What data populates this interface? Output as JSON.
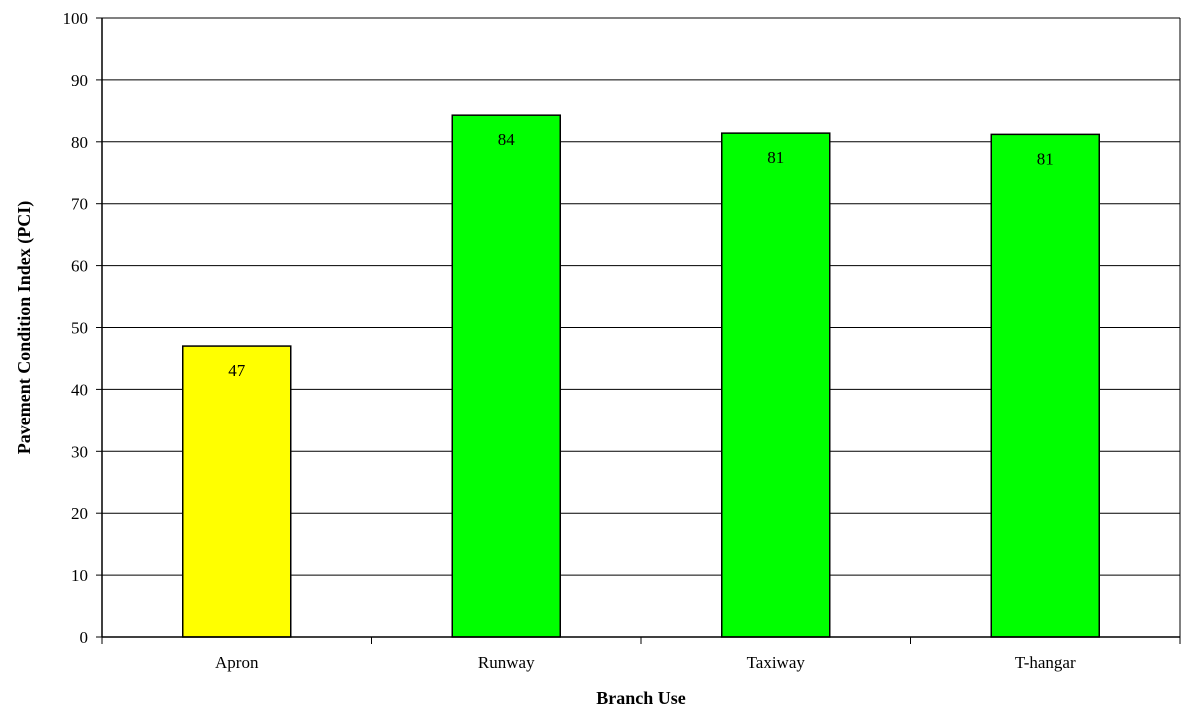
{
  "chart_data": {
    "type": "bar",
    "title": "",
    "xlabel": "Branch Use",
    "ylabel": "Pavement Condition Index (PCI)",
    "categories": [
      "Apron",
      "Runway",
      "Taxiway",
      "T-hangar"
    ],
    "values": [
      47,
      84.3,
      81.4,
      81.2
    ],
    "data_labels": [
      "47",
      "84",
      "81",
      "81"
    ],
    "bar_colors": [
      "#ffff00",
      "#00ff00",
      "#00ff00",
      "#00ff00"
    ],
    "ylim": [
      0,
      100
    ],
    "yticks": [
      "0",
      "10",
      "20",
      "30",
      "40",
      "50",
      "60",
      "70",
      "80",
      "90",
      "100"
    ],
    "grid": true,
    "legend": "none"
  }
}
